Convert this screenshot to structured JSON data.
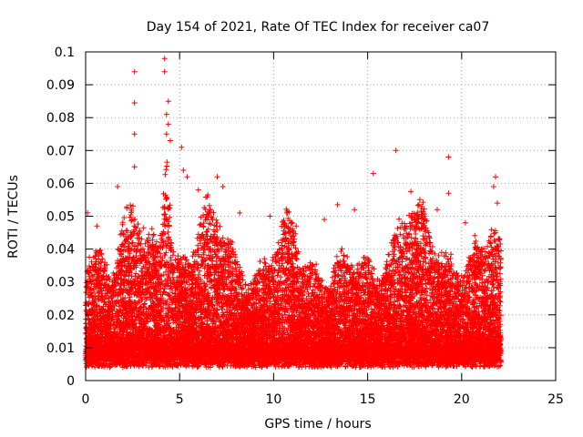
{
  "chart_data": {
    "type": "scatter",
    "title": "Day 154 of 2021, Rate Of TEC Index for receiver ca07",
    "xlabel": "GPS time / hours",
    "ylabel": "ROTI / TECUs",
    "xlim": [
      0,
      25
    ],
    "ylim": [
      0,
      0.1
    ],
    "x_ticks": [
      "0",
      "5",
      "10",
      "15",
      "20",
      "25"
    ],
    "y_ticks": [
      "0",
      "0.01",
      "0.02",
      "0.03",
      "0.04",
      "0.05",
      "0.06",
      "0.07",
      "0.08",
      "0.09",
      "0.1"
    ],
    "grid": true,
    "marker": "+",
    "color": "#ff0000",
    "outlier_points": [
      [
        4.2,
        0.098
      ],
      [
        4.2,
        0.094
      ],
      [
        2.6,
        0.094
      ],
      [
        2.6,
        0.0845
      ],
      [
        2.6,
        0.075
      ],
      [
        4.4,
        0.085
      ],
      [
        4.3,
        0.081
      ],
      [
        4.4,
        0.078
      ],
      [
        4.3,
        0.075
      ],
      [
        4.5,
        0.073
      ],
      [
        5.1,
        0.071
      ],
      [
        16.5,
        0.07
      ],
      [
        19.3,
        0.068
      ],
      [
        2.6,
        0.065
      ],
      [
        15.3,
        0.063
      ],
      [
        5.2,
        0.064
      ],
      [
        5.4,
        0.062
      ],
      [
        7.0,
        0.062
      ],
      [
        7.3,
        0.059
      ],
      [
        21.8,
        0.062
      ],
      [
        21.7,
        0.059
      ],
      [
        17.3,
        0.0575
      ],
      [
        19.3,
        0.057
      ],
      [
        1.7,
        0.059
      ],
      [
        6.0,
        0.058
      ],
      [
        0.1,
        0.051
      ],
      [
        0.6,
        0.047
      ],
      [
        8.2,
        0.051
      ],
      [
        9.8,
        0.05
      ],
      [
        10.7,
        0.051
      ],
      [
        13.4,
        0.0535
      ],
      [
        14.3,
        0.052
      ],
      [
        12.7,
        0.049
      ],
      [
        11.2,
        0.047
      ],
      [
        20.2,
        0.048
      ],
      [
        18.7,
        0.052
      ],
      [
        21.9,
        0.054
      ],
      [
        0.5,
        0.0355
      ],
      [
        0.9,
        0.037
      ]
    ],
    "point_count": 15000
  }
}
